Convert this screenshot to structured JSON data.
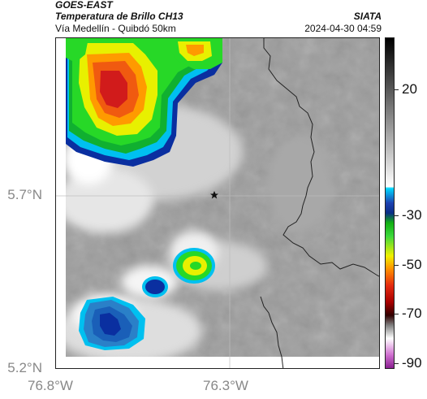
{
  "header": {
    "satellite": "GOES-EAST",
    "product": "Temperatura de Brillo CH13",
    "region": "Vía Medellín - Quibdó 50km",
    "organization": "SIATA",
    "datetime": "2024-04-30 04:59"
  },
  "axes": {
    "latitude_labels": [
      "5.7°N",
      "5.2°N"
    ],
    "longitude_labels": [
      "76.8°W",
      "76.3°W"
    ]
  },
  "colorbar": {
    "tick_labels": [
      "20",
      "-30",
      "-50",
      "-70",
      "-90"
    ],
    "colors": [
      "#000000",
      "#ffffff",
      "#00bfff",
      "#0a2fa0",
      "#1ed21e",
      "#ffff00",
      "#ff7f00",
      "#d11010",
      "#5a0000",
      "#c060c0"
    ]
  },
  "map": {
    "marker_icon": "star-icon"
  }
}
